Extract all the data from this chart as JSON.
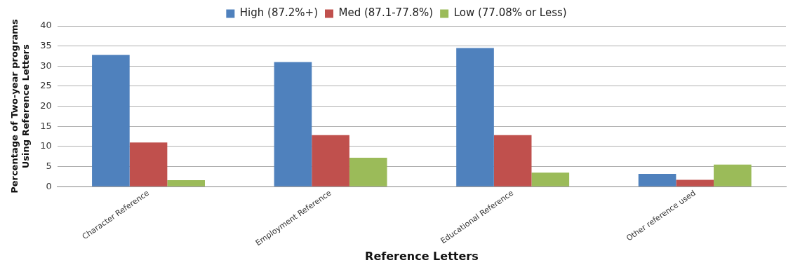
{
  "chart_data": {
    "type": "bar",
    "xlabel": "Reference Letters",
    "ylabel": "Percentage of Two-year programs\nUsing Reference Letters",
    "categories": [
      "Character Reference",
      "Employment Reference",
      "Educational Reference",
      "Other reference used"
    ],
    "series": [
      {
        "name": "High (87.2%+)",
        "color": "#4f81bd",
        "values": [
          32.8,
          31,
          34.5,
          3.2
        ]
      },
      {
        "name": "Med (87.1-77.8%)",
        "color": "#c0504d",
        "values": [
          11,
          12.8,
          12.8,
          1.7
        ]
      },
      {
        "name": "Low (77.08% or Less)",
        "color": "#9bbb59",
        "values": [
          1.6,
          7.2,
          3.5,
          5.5
        ]
      }
    ],
    "ylim": [
      0,
      40
    ],
    "yticks": [
      0,
      5,
      10,
      15,
      20,
      25,
      30,
      35,
      40
    ],
    "grid": "y",
    "legend": "top"
  }
}
